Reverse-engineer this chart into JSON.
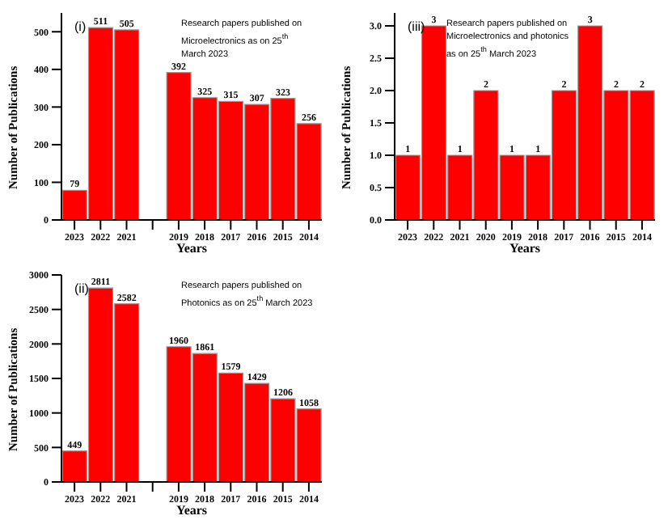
{
  "chart_data": [
    {
      "type": "bar",
      "categories": [
        "2023",
        "2022",
        "2021",
        null,
        "2019",
        "2018",
        "2017",
        "2016",
        "2015",
        "2014"
      ],
      "values": [
        79,
        511,
        505,
        null,
        392,
        325,
        315,
        307,
        323,
        256
      ],
      "color": "#ff0000",
      "ylim": [
        0,
        550
      ],
      "yticks": [
        0,
        100,
        200,
        300,
        400,
        500
      ],
      "xlabel": "Years",
      "ylabel": "Number of Publications",
      "data_labels": true,
      "grid": false,
      "annotations": [
        "(i)",
        "Research papers published on Microelectronics as on 25$^{th}$ March 2023"
      ]
    },
    {
      "type": "bar",
      "categories": [
        "2023",
        "2022",
        "2021",
        "2020",
        "2019",
        "2018",
        "2017",
        "2016",
        "2015",
        "2014"
      ],
      "values": [
        1,
        3,
        1,
        2,
        1,
        1,
        2,
        3,
        2,
        2
      ],
      "data_labels": true,
      "color": "#ff0000",
      "ylim": [
        0,
        3.2
      ],
      "yticks": [
        {
          "value": 0,
          "label": "0.0"
        },
        {
          "value": 0.5,
          "label": "0.5"
        },
        {
          "value": 1,
          "label": "1.0"
        },
        {
          "value": 1.5,
          "label": "1.5"
        },
        {
          "value": 2,
          "label": "2.0"
        },
        {
          "value": 2.5,
          "label": "2.5"
        },
        {
          "value": 3,
          "label": "3.0"
        }
      ],
      "xlabel": "Years",
      "ylabel": "Number of Publications",
      "grid": false,
      "annotations": [
        "(iii)",
        "Research papers published on Microelectronics and photonics as on 25$^{th}$ March 2023"
      ]
    },
    {
      "type": "bar",
      "categories": [
        "2023",
        "2022",
        "2021",
        null,
        "2019",
        "2018",
        "2017",
        "2016",
        "2015",
        "2014"
      ],
      "values": [
        449,
        2811,
        2582,
        null,
        1960,
        1861,
        1579,
        1429,
        1206,
        1058
      ],
      "color": "#ff0000",
      "ylim": [
        0,
        3000
      ],
      "yticks": [
        0,
        500,
        1000,
        1500,
        2000,
        2500,
        3000
      ],
      "xlabel": "Years",
      "ylabel": "Number of Publications",
      "data_labels": true,
      "grid": false,
      "annotations": [
        "(ii)",
        "Research papers published on Photonics as on 25$^{th}$ March 2023"
      ]
    }
  ]
}
